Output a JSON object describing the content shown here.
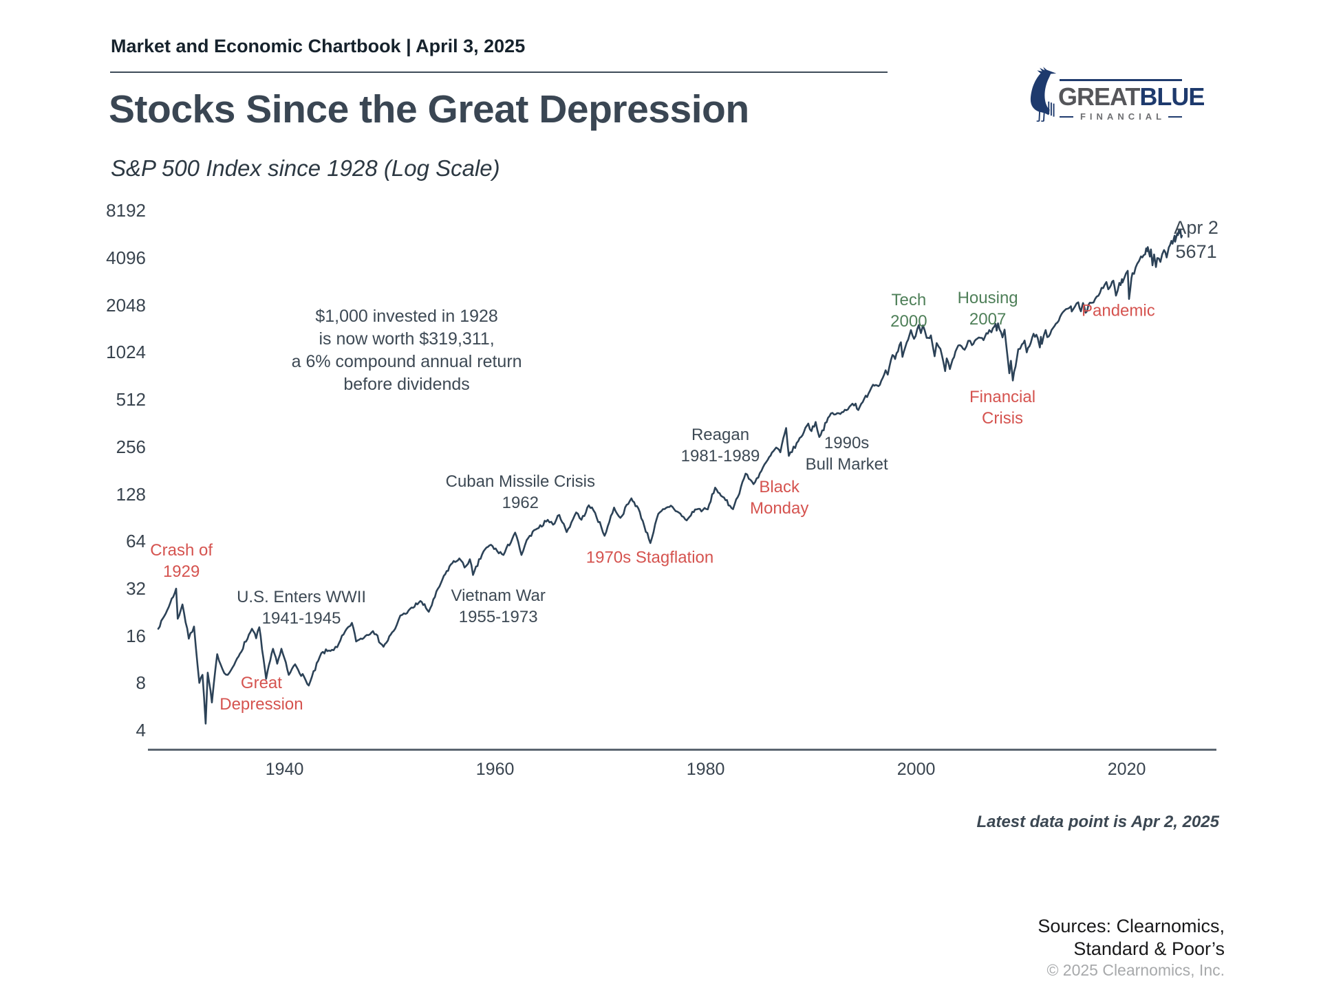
{
  "header": {
    "chartbook_label": "Market and Economic Chartbook | April 3, 2025",
    "title": "Stocks Since the Great Depression",
    "subtitle": "S&P 500 Index since 1928 (Log Scale)"
  },
  "logo": {
    "name_part1": "GREAT",
    "name_part2": "BLUE",
    "sub_label": "FINANCIAL",
    "navy": "#1e3a6d",
    "gray": "#55565a"
  },
  "footer": {
    "latest_note": "Latest data point is Apr 2, 2025",
    "sources_line1": "Sources: Clearnomics,",
    "sources_line2": "Standard & Poor’s",
    "copyright": "© 2025 Clearnomics, Inc."
  },
  "colors": {
    "line": "#2c4257",
    "axis": "#5b6570",
    "text_dark": "#3d4954",
    "red": "#d5534f",
    "green": "#4e7f58"
  },
  "chart_data": {
    "type": "line",
    "title": "Stocks Since the Great Depression",
    "subtitle": "S&P 500 Index since 1928 (Log Scale)",
    "y_scale": "log2",
    "grid": false,
    "legend": "none",
    "x_range": [
      1928,
      2025.25
    ],
    "y_range": [
      4,
      8192
    ],
    "x_ticks": [
      1940,
      1960,
      1980,
      2000,
      2020
    ],
    "y_ticks": [
      8192,
      4096,
      2048,
      1024,
      512,
      256,
      128,
      64,
      32,
      16,
      8,
      4
    ],
    "series": [
      {
        "name": "S&P 500 Index",
        "points": [
          [
            1928.0,
            17.7
          ],
          [
            1929.0,
            24.4
          ],
          [
            1929.7,
            31.9
          ],
          [
            1929.85,
            20.5
          ],
          [
            1930.3,
            25.3
          ],
          [
            1930.9,
            15.3
          ],
          [
            1931.4,
            18.3
          ],
          [
            1931.9,
            8.0
          ],
          [
            1932.2,
            9.0
          ],
          [
            1932.5,
            4.4
          ],
          [
            1932.7,
            9.3
          ],
          [
            1933.1,
            6.0
          ],
          [
            1933.6,
            12.2
          ],
          [
            1934.1,
            9.8
          ],
          [
            1934.6,
            9.0
          ],
          [
            1935.2,
            10.4
          ],
          [
            1936.9,
            17.7
          ],
          [
            1937.3,
            15.4
          ],
          [
            1937.6,
            18.1
          ],
          [
            1938.25,
            8.5
          ],
          [
            1938.9,
            13.2
          ],
          [
            1939.3,
            10.6
          ],
          [
            1939.7,
            13.2
          ],
          [
            1940.4,
            9.0
          ],
          [
            1941.0,
            10.5
          ],
          [
            1942.3,
            7.7
          ],
          [
            1943.5,
            12.4
          ],
          [
            1944.5,
            13.0
          ],
          [
            1945.0,
            13.5
          ],
          [
            1945.9,
            17.7
          ],
          [
            1946.4,
            19.3
          ],
          [
            1946.8,
            14.7
          ],
          [
            1948.4,
            17.1
          ],
          [
            1949.4,
            13.6
          ],
          [
            1950.5,
            17.7
          ],
          [
            1951.0,
            21.5
          ],
          [
            1951.5,
            22.0
          ],
          [
            1952.9,
            26.6
          ],
          [
            1953.7,
            22.7
          ],
          [
            1955.0,
            36.6
          ],
          [
            1955.8,
            45.5
          ],
          [
            1956.6,
            49.7
          ],
          [
            1957.1,
            43.5
          ],
          [
            1957.6,
            49.1
          ],
          [
            1957.9,
            39.0
          ],
          [
            1958.9,
            55.2
          ],
          [
            1959.6,
            60.7
          ],
          [
            1960.2,
            55.3
          ],
          [
            1960.8,
            52.3
          ],
          [
            1961.9,
            72.6
          ],
          [
            1962.5,
            52.3
          ],
          [
            1963.0,
            65.0
          ],
          [
            1964.0,
            77.0
          ],
          [
            1965.0,
            87.6
          ],
          [
            1965.5,
            81.6
          ],
          [
            1966.1,
            94.1
          ],
          [
            1966.8,
            73.2
          ],
          [
            1967.7,
            97.6
          ],
          [
            1968.2,
            87.7
          ],
          [
            1968.9,
            108.4
          ],
          [
            1969.5,
            97.0
          ],
          [
            1970.4,
            69.3
          ],
          [
            1971.3,
            104.8
          ],
          [
            1971.9,
            90.2
          ],
          [
            1972.95,
            120.0
          ],
          [
            1973.6,
            103.8
          ],
          [
            1974.75,
            62.3
          ],
          [
            1975.5,
            95.6
          ],
          [
            1976.7,
            107.8
          ],
          [
            1978.2,
            86.9
          ],
          [
            1979.0,
            102.0
          ],
          [
            1980.2,
            102.1
          ],
          [
            1980.9,
            140.5
          ],
          [
            1981.6,
            122.8
          ],
          [
            1982.6,
            102.4
          ],
          [
            1983.8,
            172.6
          ],
          [
            1984.55,
            147.8
          ],
          [
            1985.9,
            211.3
          ],
          [
            1986.7,
            252.8
          ],
          [
            1987.1,
            236.0
          ],
          [
            1987.65,
            336.8
          ],
          [
            1987.9,
            223.9
          ],
          [
            1988.8,
            277.7
          ],
          [
            1989.75,
            359.8
          ],
          [
            1990.05,
            322.0
          ],
          [
            1990.45,
            368.0
          ],
          [
            1990.8,
            295.5
          ],
          [
            1991.9,
            417.1
          ],
          [
            1992.8,
            414.0
          ],
          [
            1993.8,
            470.0
          ],
          [
            1994.25,
            482.0
          ],
          [
            1994.5,
            438.9
          ],
          [
            1995.9,
            636.0
          ],
          [
            1996.55,
            635.0
          ],
          [
            1997.1,
            786.2
          ],
          [
            1997.3,
            737.7
          ],
          [
            1997.75,
            983.1
          ],
          [
            1998.0,
            927.7
          ],
          [
            1998.55,
            1186.8
          ],
          [
            1998.7,
            957.3
          ],
          [
            1999.5,
            1418.8
          ],
          [
            1999.8,
            1247.4
          ],
          [
            2000.25,
            1527.5
          ],
          [
            2000.45,
            1356.6
          ],
          [
            2000.65,
            1520.8
          ],
          [
            2001.0,
            1264.7
          ],
          [
            2001.4,
            1312.8
          ],
          [
            2001.75,
            965.8
          ],
          [
            2001.95,
            1172.5
          ],
          [
            2002.3,
            1076.9
          ],
          [
            2002.75,
            776.8
          ],
          [
            2002.9,
            936.3
          ],
          [
            2003.2,
            800.7
          ],
          [
            2004.0,
            1131.9
          ],
          [
            2004.6,
            1063.2
          ],
          [
            2004.95,
            1211.9
          ],
          [
            2005.3,
            1137.5
          ],
          [
            2005.95,
            1272.7
          ],
          [
            2006.4,
            1223.7
          ],
          [
            2006.95,
            1418.3
          ],
          [
            2007.15,
            1374.1
          ],
          [
            2007.55,
            1553.1
          ],
          [
            2007.65,
            1406.7
          ],
          [
            2007.78,
            1565.2
          ],
          [
            2008.2,
            1273.4
          ],
          [
            2008.4,
            1426.6
          ],
          [
            2008.85,
            752.4
          ],
          [
            2009.0,
            903.3
          ],
          [
            2009.18,
            676.5
          ],
          [
            2009.7,
            1071.7
          ],
          [
            2010.05,
            1150.2
          ],
          [
            2010.3,
            1217.3
          ],
          [
            2010.5,
            1022.6
          ],
          [
            2011.15,
            1343.0
          ],
          [
            2011.55,
            1260.0
          ],
          [
            2011.75,
            1099.2
          ],
          [
            2011.85,
            1285.1
          ],
          [
            2011.95,
            1158.7
          ],
          [
            2012.3,
            1419.0
          ],
          [
            2012.45,
            1278.0
          ],
          [
            2013.0,
            1462.4
          ],
          [
            2013.95,
            1848.4
          ],
          [
            2014.7,
            2011.4
          ],
          [
            2014.78,
            1862.5
          ],
          [
            2015.4,
            2130.8
          ],
          [
            2015.65,
            1867.6
          ],
          [
            2015.85,
            2109.8
          ],
          [
            2016.1,
            1829.1
          ],
          [
            2016.5,
            2120.5
          ],
          [
            2016.85,
            2126.4
          ],
          [
            2017.0,
            2238.8
          ],
          [
            2018.07,
            2872.9
          ],
          [
            2018.25,
            2581.0
          ],
          [
            2018.5,
            2734.6
          ],
          [
            2018.73,
            2930.8
          ],
          [
            2018.98,
            2351.1
          ],
          [
            2019.3,
            2834.4
          ],
          [
            2019.42,
            2744.5
          ],
          [
            2019.55,
            2995.8
          ],
          [
            2019.6,
            2847.1
          ],
          [
            2020.1,
            3386.2
          ],
          [
            2020.22,
            2237.4
          ],
          [
            2020.45,
            3044.3
          ],
          [
            2020.55,
            3271.1
          ],
          [
            2020.7,
            3236.9
          ],
          [
            2021.0,
            3756.1
          ],
          [
            2021.35,
            4181.2
          ],
          [
            2021.75,
            4307.5
          ],
          [
            2021.85,
            4701.7
          ],
          [
            2021.95,
            4513.0
          ],
          [
            2022.0,
            4796.6
          ],
          [
            2022.2,
            4170.7
          ],
          [
            2022.3,
            4631.6
          ],
          [
            2022.45,
            3666.8
          ],
          [
            2022.6,
            4305.2
          ],
          [
            2022.78,
            3577.0
          ],
          [
            2022.9,
            4080.1
          ],
          [
            2023.2,
            3855.8
          ],
          [
            2023.55,
            4588.9
          ],
          [
            2023.8,
            4117.4
          ],
          [
            2024.0,
            4769.8
          ],
          [
            2024.25,
            5254.4
          ],
          [
            2024.35,
            5035.7
          ],
          [
            2024.55,
            5667.2
          ],
          [
            2024.6,
            5186.3
          ],
          [
            2024.8,
            5864.7
          ],
          [
            2024.87,
            5712.7
          ],
          [
            2024.95,
            6090.3
          ],
          [
            2025.0,
            5881.6
          ],
          [
            2025.1,
            6144.2
          ],
          [
            2025.18,
            5521.5
          ],
          [
            2025.25,
            5671.0
          ]
        ]
      }
    ],
    "annotations": [
      {
        "name": "invested-note",
        "lines": [
          "$1,000 invested in 1928",
          "is now worth $319,311,",
          "a 6% compound annual return",
          "before dividends"
        ],
        "color": "dark",
        "size": 25,
        "year": 1951.6,
        "value": 1050
      },
      {
        "name": "crash-of-1929",
        "lines": [
          "Crash of",
          "1929"
        ],
        "color": "red",
        "size": 24,
        "year": 1930.2,
        "value": 48
      },
      {
        "name": "great-depression",
        "lines": [
          "Great",
          "Depression"
        ],
        "color": "red",
        "size": 24,
        "year": 1937.8,
        "value": 6.8
      },
      {
        "name": "us-enters-wwii",
        "lines": [
          "U.S. Enters WWII",
          "1941-1945"
        ],
        "color": "dark",
        "size": 24,
        "year": 1941.6,
        "value": 24.2
      },
      {
        "name": "cuban-missile-crisis",
        "lines": [
          "Cuban Missile Crisis",
          "1962"
        ],
        "color": "dark",
        "size": 24,
        "year": 1962.4,
        "value": 131
      },
      {
        "name": "vietnam-war",
        "lines": [
          "Vietnam War",
          "1955-1973"
        ],
        "color": "dark",
        "size": 24,
        "year": 1960.3,
        "value": 24.7
      },
      {
        "name": "stagflation-1970s",
        "lines": [
          "1970s Stagflation"
        ],
        "color": "red",
        "size": 24,
        "year": 1974.7,
        "value": 50.5
      },
      {
        "name": "reagan",
        "lines": [
          "Reagan",
          "1981-1989"
        ],
        "color": "dark",
        "size": 24,
        "year": 1981.4,
        "value": 262
      },
      {
        "name": "black-monday",
        "lines": [
          "Black",
          "Monday"
        ],
        "color": "red",
        "size": 24,
        "year": 1987.0,
        "value": 121
      },
      {
        "name": "bull-market-1990s",
        "lines": [
          "1990s",
          "Bull Market"
        ],
        "color": "dark",
        "size": 24,
        "year": 1993.4,
        "value": 232
      },
      {
        "name": "tech-2000",
        "lines": [
          "Tech",
          "2000"
        ],
        "color": "green",
        "size": 24,
        "year": 1999.3,
        "value": 1880
      },
      {
        "name": "housing-2007",
        "lines": [
          "Housing",
          "2007"
        ],
        "color": "green",
        "size": 24,
        "year": 2006.8,
        "value": 1950
      },
      {
        "name": "financial-crisis",
        "lines": [
          "Financial",
          "Crisis"
        ],
        "color": "red",
        "size": 24,
        "year": 2008.2,
        "value": 455
      },
      {
        "name": "pandemic",
        "lines": [
          "Pandemic"
        ],
        "color": "red",
        "size": 24,
        "year": 2019.2,
        "value": 1890
      },
      {
        "name": "end-label",
        "lines": [
          "Apr 2",
          "5671"
        ],
        "color": "dark",
        "size": 27,
        "year": 2026.6,
        "value": 5350
      }
    ]
  }
}
